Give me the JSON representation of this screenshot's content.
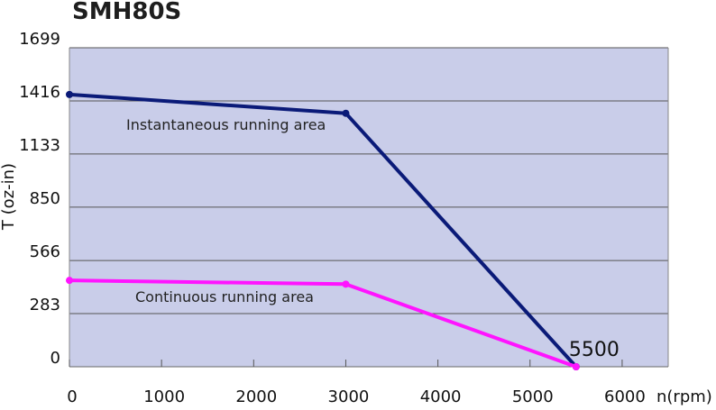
{
  "chart_data": {
    "type": "line",
    "title": "SMH80S",
    "xlabel": "n(rpm)",
    "ylabel": "T (oz-in)",
    "xlim": [
      0,
      6500
    ],
    "ylim": [
      0,
      1699
    ],
    "x_ticks": [
      0,
      1000,
      2000,
      3000,
      4000,
      5000,
      6000
    ],
    "y_ticks": [
      0,
      283,
      566,
      850,
      1133,
      1416,
      1699
    ],
    "grid": true,
    "series": [
      {
        "name": "Instantaneous running area",
        "color": "#0a1a78",
        "points": [
          [
            0,
            1450
          ],
          [
            3000,
            1350
          ],
          [
            5500,
            0
          ]
        ]
      },
      {
        "name": "Continuous running area",
        "color": "#ff14ff",
        "points": [
          [
            0,
            460
          ],
          [
            3000,
            440
          ],
          [
            5500,
            0
          ]
        ]
      }
    ],
    "annotations": [
      {
        "text": "5500",
        "x": 5500,
        "y": 0
      }
    ],
    "colors": {
      "plot_background": "#c9cde9",
      "gridline": "#555555",
      "axis": "#888888"
    }
  }
}
